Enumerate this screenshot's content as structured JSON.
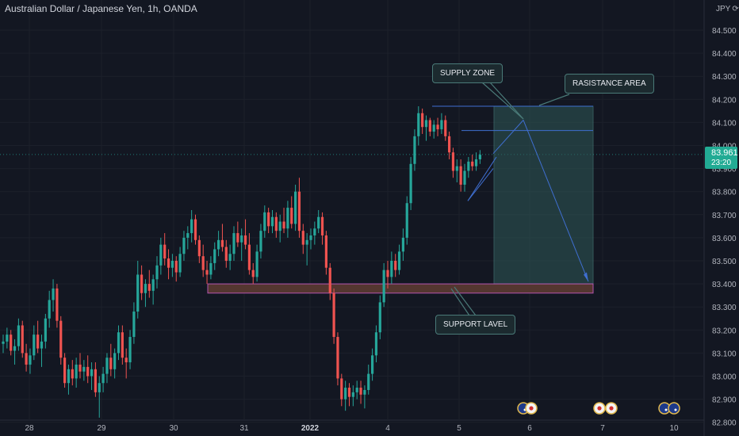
{
  "header": {
    "title": "Australian Dollar / Japanese Yen, 1h, OANDA",
    "currency": "JPY"
  },
  "price_tag": {
    "price": "83.961",
    "countdown": "23:20"
  },
  "annotations": {
    "supply_zone": "SUPPLY ZONE",
    "resistance_area": "RASISTANCE AREA",
    "support_level": "SUPPORT LAVEL"
  },
  "chart_data": {
    "type": "candlestick",
    "symbol": "AUDJPY",
    "timeframe": "1h",
    "x_ticks": [
      "28",
      "29",
      "30",
      "31",
      "2022",
      "4",
      "5",
      "6",
      "7",
      "10"
    ],
    "y_ticks": [
      "84.500",
      "84.400",
      "84.300",
      "84.200",
      "84.100",
      "84.000",
      "83.900",
      "83.800",
      "83.700",
      "83.600",
      "83.500",
      "83.400",
      "83.300",
      "83.200",
      "83.100",
      "83.000",
      "82.900",
      "82.800"
    ],
    "ylim": [
      82.78,
      84.62
    ],
    "last_price": 83.961,
    "zones": {
      "supply_top": 84.17,
      "supply_bottom": 84.065,
      "support_top": 83.4,
      "support_bottom": 83.36,
      "target": 83.41
    },
    "colors": {
      "up": "#26a69a",
      "down": "#ef5350"
    },
    "candles": [
      [
        83.14,
        83.18,
        83.1,
        83.15
      ],
      [
        83.15,
        83.21,
        83.12,
        83.18
      ],
      [
        83.18,
        83.2,
        83.09,
        83.11
      ],
      [
        83.11,
        83.16,
        83.05,
        83.13
      ],
      [
        83.13,
        83.25,
        83.11,
        83.22
      ],
      [
        83.22,
        83.24,
        83.08,
        83.1
      ],
      [
        83.1,
        83.14,
        83.02,
        83.05
      ],
      [
        83.05,
        83.12,
        83.01,
        83.09
      ],
      [
        83.09,
        83.22,
        83.07,
        83.18
      ],
      [
        83.18,
        83.24,
        83.1,
        83.12
      ],
      [
        83.12,
        83.18,
        83.04,
        83.15
      ],
      [
        83.15,
        83.27,
        83.12,
        83.25
      ],
      [
        83.25,
        83.37,
        83.21,
        83.33
      ],
      [
        83.33,
        83.42,
        83.28,
        83.38
      ],
      [
        83.38,
        83.4,
        83.21,
        83.24
      ],
      [
        83.24,
        83.26,
        83.05,
        83.08
      ],
      [
        83.08,
        83.1,
        82.95,
        82.97
      ],
      [
        82.97,
        83.05,
        82.92,
        83.03
      ],
      [
        83.03,
        83.07,
        82.96,
        82.99
      ],
      [
        82.99,
        83.08,
        82.95,
        83.05
      ],
      [
        83.05,
        83.1,
        82.99,
        83.02
      ],
      [
        83.02,
        83.07,
        82.98,
        83.04
      ],
      [
        83.04,
        83.09,
        82.97,
        83.0
      ],
      [
        83.0,
        83.06,
        82.94,
        83.03
      ],
      [
        83.03,
        83.06,
        82.91,
        82.93
      ],
      [
        82.93,
        83.0,
        82.82,
        82.97
      ],
      [
        82.97,
        83.04,
        82.93,
        83.01
      ],
      [
        83.01,
        83.1,
        82.97,
        83.08
      ],
      [
        83.08,
        83.14,
        83.0,
        83.03
      ],
      [
        83.03,
        83.12,
        82.99,
        83.1
      ],
      [
        83.1,
        83.22,
        83.07,
        83.19
      ],
      [
        83.19,
        83.22,
        83.05,
        83.08
      ],
      [
        83.08,
        83.12,
        82.99,
        83.06
      ],
      [
        83.06,
        83.2,
        83.03,
        83.17
      ],
      [
        83.17,
        83.32,
        83.14,
        83.28
      ],
      [
        83.28,
        83.5,
        83.25,
        83.44
      ],
      [
        83.44,
        83.48,
        83.33,
        83.36
      ],
      [
        83.36,
        83.42,
        83.3,
        83.4
      ],
      [
        83.4,
        83.46,
        83.34,
        83.37
      ],
      [
        83.37,
        83.44,
        83.31,
        83.42
      ],
      [
        83.42,
        83.52,
        83.38,
        83.48
      ],
      [
        83.48,
        83.6,
        83.44,
        83.57
      ],
      [
        83.57,
        83.62,
        83.48,
        83.51
      ],
      [
        83.51,
        83.55,
        83.42,
        83.47
      ],
      [
        83.47,
        83.53,
        83.43,
        83.5
      ],
      [
        83.5,
        83.52,
        83.41,
        83.45
      ],
      [
        83.45,
        83.56,
        83.43,
        83.53
      ],
      [
        83.53,
        83.63,
        83.5,
        83.6
      ],
      [
        83.6,
        83.65,
        83.55,
        83.62
      ],
      [
        83.62,
        83.72,
        83.58,
        83.68
      ],
      [
        83.68,
        83.7,
        83.57,
        83.59
      ],
      [
        83.59,
        83.61,
        83.49,
        83.52
      ],
      [
        83.52,
        83.57,
        83.43,
        83.46
      ],
      [
        83.46,
        83.5,
        83.4,
        83.44
      ],
      [
        83.44,
        83.52,
        83.42,
        83.49
      ],
      [
        83.49,
        83.58,
        83.46,
        83.55
      ],
      [
        83.55,
        83.63,
        83.52,
        83.59
      ],
      [
        83.59,
        83.66,
        83.54,
        83.56
      ],
      [
        83.56,
        83.59,
        83.47,
        83.5
      ],
      [
        83.5,
        83.57,
        83.46,
        83.53
      ],
      [
        83.53,
        83.65,
        83.5,
        83.62
      ],
      [
        83.62,
        83.67,
        83.56,
        83.58
      ],
      [
        83.58,
        83.64,
        83.5,
        83.61
      ],
      [
        83.61,
        83.68,
        83.55,
        83.57
      ],
      [
        83.57,
        83.62,
        83.44,
        83.46
      ],
      [
        83.46,
        83.49,
        83.4,
        83.43
      ],
      [
        83.43,
        83.57,
        83.41,
        83.54
      ],
      [
        83.54,
        83.66,
        83.51,
        83.63
      ],
      [
        83.63,
        83.74,
        83.6,
        83.71
      ],
      [
        83.71,
        83.73,
        83.62,
        83.65
      ],
      [
        83.65,
        83.72,
        83.62,
        83.69
      ],
      [
        83.69,
        83.71,
        83.6,
        83.63
      ],
      [
        83.63,
        83.7,
        83.58,
        83.67
      ],
      [
        83.67,
        83.73,
        83.62,
        83.64
      ],
      [
        83.64,
        83.76,
        83.6,
        83.73
      ],
      [
        83.73,
        83.78,
        83.64,
        83.66
      ],
      [
        83.66,
        83.83,
        83.63,
        83.8
      ],
      [
        83.8,
        83.86,
        83.6,
        83.63
      ],
      [
        83.63,
        83.66,
        83.53,
        83.57
      ],
      [
        83.57,
        83.62,
        83.48,
        83.59
      ],
      [
        83.59,
        83.64,
        83.55,
        83.61
      ],
      [
        83.61,
        83.67,
        83.57,
        83.64
      ],
      [
        83.64,
        83.72,
        83.62,
        83.69
      ],
      [
        83.69,
        83.71,
        83.57,
        83.61
      ],
      [
        83.61,
        83.63,
        83.44,
        83.47
      ],
      [
        83.47,
        83.49,
        83.33,
        83.36
      ],
      [
        83.36,
        83.38,
        83.14,
        83.17
      ],
      [
        83.17,
        83.19,
        82.96,
        82.99
      ],
      [
        82.99,
        83.01,
        82.87,
        82.9
      ],
      [
        82.9,
        82.98,
        82.85,
        82.95
      ],
      [
        82.95,
        82.97,
        82.87,
        82.91
      ],
      [
        82.91,
        82.96,
        82.87,
        82.93
      ],
      [
        82.93,
        82.98,
        82.9,
        82.95
      ],
      [
        82.95,
        82.98,
        82.88,
        82.92
      ],
      [
        82.92,
        82.96,
        82.86,
        82.94
      ],
      [
        82.94,
        83.05,
        82.92,
        83.01
      ],
      [
        83.01,
        83.12,
        82.98,
        83.09
      ],
      [
        83.09,
        83.22,
        83.06,
        83.19
      ],
      [
        83.19,
        83.35,
        83.16,
        83.32
      ],
      [
        83.32,
        83.49,
        83.3,
        83.46
      ],
      [
        83.46,
        83.5,
        83.38,
        83.43
      ],
      [
        83.43,
        83.54,
        83.4,
        83.5
      ],
      [
        83.5,
        83.53,
        83.43,
        83.46
      ],
      [
        83.46,
        83.57,
        83.44,
        83.54
      ],
      [
        83.54,
        83.64,
        83.5,
        83.6
      ],
      [
        83.6,
        83.78,
        83.57,
        83.75
      ],
      [
        83.75,
        83.95,
        83.72,
        83.92
      ],
      [
        83.92,
        84.07,
        83.89,
        84.04
      ],
      [
        84.04,
        84.17,
        84.0,
        84.14
      ],
      [
        84.14,
        84.16,
        84.05,
        84.08
      ],
      [
        84.08,
        84.13,
        84.02,
        84.11
      ],
      [
        84.11,
        84.12,
        84.04,
        84.06
      ],
      [
        84.06,
        84.11,
        84.03,
        84.09
      ],
      [
        84.09,
        84.12,
        84.04,
        84.07
      ],
      [
        84.07,
        84.14,
        84.05,
        84.11
      ],
      [
        84.11,
        84.13,
        84.02,
        84.04
      ],
      [
        84.04,
        84.06,
        83.94,
        83.97
      ],
      [
        83.97,
        83.99,
        83.86,
        83.89
      ],
      [
        83.89,
        83.94,
        83.84,
        83.91
      ],
      [
        83.91,
        83.94,
        83.8,
        83.83
      ],
      [
        83.83,
        83.92,
        83.8,
        83.89
      ],
      [
        83.89,
        83.95,
        83.86,
        83.93
      ],
      [
        83.93,
        83.96,
        83.89,
        83.91
      ],
      [
        83.91,
        83.97,
        83.89,
        83.94
      ],
      [
        83.94,
        83.98,
        83.92,
        83.96
      ]
    ]
  }
}
